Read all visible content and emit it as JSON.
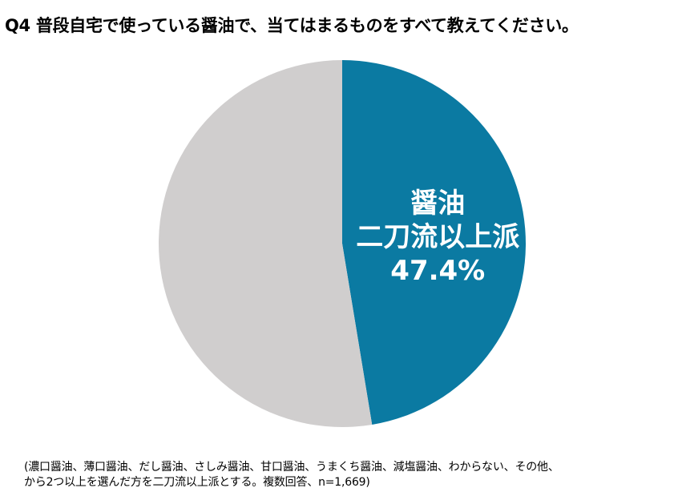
{
  "title": "Q4 普段自宅で使っている醤油で、当てはまるものをすべて教えてください。",
  "chart_data": {
    "type": "pie",
    "slices": [
      {
        "label_lines": [
          "醤油",
          "二刀流以上派"
        ],
        "value_label": "47.4%",
        "value": 47.4,
        "color": "#0B7AA2"
      },
      {
        "label_lines": [],
        "value_label": "",
        "value": 52.6,
        "color": "#D0CECE"
      }
    ]
  },
  "footnote": {
    "line1": "(濃口醤油、薄口醤油、だし醤油、さしみ醤油、甘口醤油、うまくち醤油、減塩醤油、わからない、その他、",
    "line2": "から2つ以上を選んだ方を二刀流以上派とする。複数回答、n=1,669)"
  }
}
